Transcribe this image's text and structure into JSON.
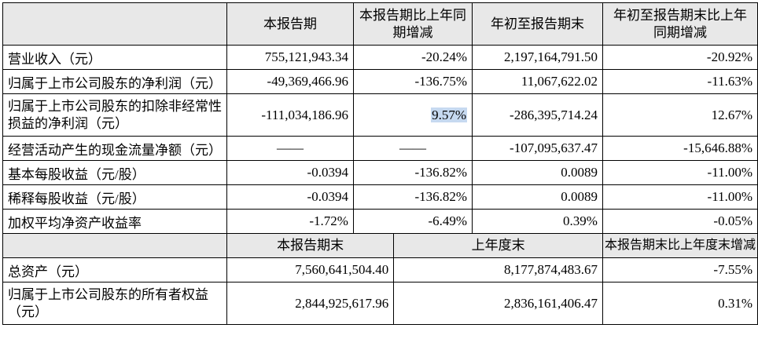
{
  "header1": {
    "col1": "本报告期",
    "col2": "本报告期比上年同期增减",
    "col3": "年初至报告期末",
    "col4": "年初至报告期末比上年同期增减"
  },
  "rows": [
    {
      "label": "营业收入（元）",
      "c1": "755,121,943.34",
      "c2": "-20.24%",
      "c3": "2,197,164,791.50",
      "c4": "-20.92%"
    },
    {
      "label": "归属于上市公司股东的净利润（元）",
      "c1": "-49,369,466.96",
      "c2": "-136.75%",
      "c3": "11,067,622.02",
      "c4": "-11.63%"
    },
    {
      "label": "归属于上市公司股东的扣除非经常性损益的净利润（元）",
      "c1": "-111,034,186.96",
      "c2": "9.57%",
      "c3": "-286,395,714.24",
      "c4": "12.67%"
    },
    {
      "label": "经营活动产生的现金流量净额（元）",
      "c1": "——",
      "c2": "——",
      "c3": "-107,095,637.47",
      "c4": "-15,646.88%"
    },
    {
      "label": "基本每股收益（元/股）",
      "c1": "-0.0394",
      "c2": "-136.82%",
      "c3": "0.0089",
      "c4": "-11.00%"
    },
    {
      "label": "稀释每股收益（元/股）",
      "c1": "-0.0394",
      "c2": "-136.82%",
      "c3": "0.0089",
      "c4": "-11.00%"
    },
    {
      "label": "加权平均净资产收益率",
      "c1": "-1.72%",
      "c2": "-6.49%",
      "c3": "0.39%",
      "c4": "-0.05%"
    }
  ],
  "header2": {
    "col1": "本报告期末",
    "col2": "上年度末",
    "col3": "本报告期末比上年度末增减"
  },
  "rows2": [
    {
      "label": "总资产（元）",
      "c1": "7,560,641,504.40",
      "c2": "8,177,874,483.67",
      "c3": "-7.55%"
    },
    {
      "label": "归属于上市公司股东的所有者权益（元）",
      "c1": "2,844,925,617.96",
      "c2": "2,836,161,406.47",
      "c3": "0.31%"
    }
  ],
  "colors": {
    "header_bg": "#e8e8e8",
    "highlight": "#c6d9f0",
    "border": "#000000"
  }
}
